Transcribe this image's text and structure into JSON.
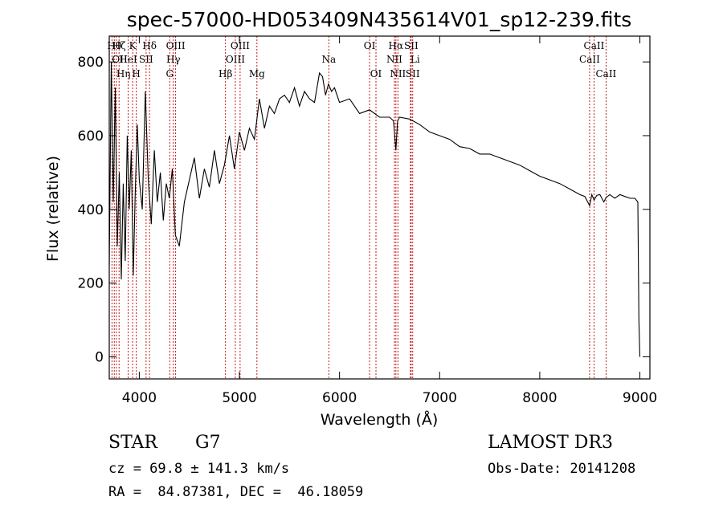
{
  "chart_data": {
    "type": "line",
    "title": "spec-57000-HD053409N435614V01_sp12-239.fits",
    "xlabel": "Wavelength (Å)",
    "ylabel": "Flux (relative)",
    "xlim": [
      3700,
      9100
    ],
    "ylim": [
      -60,
      870
    ],
    "xticks": [
      4000,
      5000,
      6000,
      7000,
      8000,
      9000
    ],
    "yticks": [
      0,
      200,
      400,
      600,
      800
    ],
    "series": [
      {
        "name": "flux",
        "x": [
          3700,
          3720,
          3740,
          3760,
          3780,
          3800,
          3820,
          3840,
          3860,
          3880,
          3900,
          3920,
          3940,
          3960,
          3980,
          4000,
          4030,
          4060,
          4090,
          4120,
          4150,
          4180,
          4210,
          4240,
          4270,
          4300,
          4330,
          4360,
          4400,
          4450,
          4500,
          4550,
          4600,
          4650,
          4700,
          4750,
          4800,
          4850,
          4900,
          4950,
          5000,
          5050,
          5100,
          5150,
          5200,
          5250,
          5300,
          5350,
          5400,
          5450,
          5500,
          5550,
          5600,
          5650,
          5700,
          5750,
          5800,
          5830,
          5860,
          5890,
          5920,
          5950,
          6000,
          6100,
          6200,
          6300,
          6400,
          6500,
          6540,
          6563,
          6580,
          6600,
          6700,
          6800,
          6900,
          7000,
          7100,
          7200,
          7300,
          7400,
          7500,
          7600,
          7700,
          7800,
          7900,
          8000,
          8100,
          8200,
          8300,
          8400,
          8450,
          8498,
          8520,
          8542,
          8570,
          8600,
          8640,
          8662,
          8700,
          8750,
          8800,
          8850,
          8900,
          8950,
          8980,
          8990,
          9000
        ],
        "y": [
          250,
          800,
          420,
          730,
          300,
          500,
          210,
          470,
          260,
          600,
          400,
          560,
          220,
          450,
          630,
          480,
          400,
          720,
          480,
          360,
          560,
          420,
          500,
          370,
          470,
          430,
          510,
          330,
          300,
          420,
          480,
          540,
          430,
          510,
          460,
          560,
          470,
          520,
          600,
          510,
          610,
          560,
          620,
          590,
          700,
          620,
          680,
          660,
          700,
          710,
          690,
          730,
          680,
          720,
          700,
          690,
          770,
          760,
          710,
          740,
          720,
          730,
          690,
          700,
          660,
          670,
          650,
          650,
          640,
          560,
          640,
          650,
          645,
          630,
          610,
          600,
          590,
          570,
          565,
          550,
          550,
          540,
          530,
          520,
          505,
          490,
          480,
          470,
          455,
          440,
          435,
          410,
          440,
          425,
          438,
          440,
          420,
          432,
          440,
          430,
          440,
          435,
          430,
          430,
          420,
          100,
          0
        ]
      }
    ],
    "lines": [
      {
        "wave": 3727,
        "label": "OII",
        "row": 1,
        "anchor": "start"
      },
      {
        "wave": 3750,
        "label": "Hθ",
        "row": 0,
        "anchor": "middle"
      },
      {
        "wave": 3771,
        "label": "Hη",
        "row": 2,
        "anchor": "start"
      },
      {
        "wave": 3798,
        "label": "Hζ",
        "row": 0,
        "anchor": "middle"
      },
      {
        "wave": 3889,
        "label": "HeI",
        "row": 1,
        "anchor": "middle"
      },
      {
        "wave": 3934,
        "label": "K",
        "row": 0,
        "anchor": "middle"
      },
      {
        "wave": 3970,
        "label": "H",
        "row": 2,
        "anchor": "middle"
      },
      {
        "wave": 4068,
        "label": "SII",
        "row": 1,
        "anchor": "middle"
      },
      {
        "wave": 4102,
        "label": "Hδ",
        "row": 0,
        "anchor": "middle"
      },
      {
        "wave": 4304,
        "label": "G",
        "row": 2,
        "anchor": "middle"
      },
      {
        "wave": 4340,
        "label": "Hγ",
        "row": 1,
        "anchor": "middle"
      },
      {
        "wave": 4363,
        "label": "OIII",
        "row": 0,
        "anchor": "middle"
      },
      {
        "wave": 4861,
        "label": "Hβ",
        "row": 2,
        "anchor": "middle"
      },
      {
        "wave": 4959,
        "label": "OIII",
        "row": 1,
        "anchor": "middle"
      },
      {
        "wave": 5007,
        "label": "OIII",
        "row": 0,
        "anchor": "middle"
      },
      {
        "wave": 5175,
        "label": "Mg",
        "row": 2,
        "anchor": "middle"
      },
      {
        "wave": 5893,
        "label": "Na",
        "row": 1,
        "anchor": "middle"
      },
      {
        "wave": 6300,
        "label": "OI",
        "row": 0,
        "anchor": "middle"
      },
      {
        "wave": 6364,
        "label": "OI",
        "row": 2,
        "anchor": "middle"
      },
      {
        "wave": 6548,
        "label": "NII",
        "row": 1,
        "anchor": "middle"
      },
      {
        "wave": 6563,
        "label": "Hα",
        "row": 0,
        "anchor": "middle"
      },
      {
        "wave": 6583,
        "label": "NII",
        "row": 2,
        "anchor": "middle"
      },
      {
        "wave": 6708,
        "label": "Li",
        "row": 1,
        "anchor": "start"
      },
      {
        "wave": 6716,
        "label": "SII",
        "row": 0,
        "anchor": "middle"
      },
      {
        "wave": 6731,
        "label": "SII",
        "row": 2,
        "anchor": "middle"
      },
      {
        "wave": 8498,
        "label": "CaII",
        "row": 1,
        "anchor": "middle"
      },
      {
        "wave": 8542,
        "label": "CaII",
        "row": 0,
        "anchor": "middle"
      },
      {
        "wave": 8662,
        "label": "CaII",
        "row": 2,
        "anchor": "middle"
      }
    ]
  },
  "info": {
    "class": "STAR",
    "subclass": "G7",
    "survey": "LAMOST DR3",
    "cz": "cz = 69.8 ± 141.3 km/s",
    "obs_date": "Obs-Date: 20141208",
    "coords": "RA =  84.87381, DEC =  46.18059"
  }
}
